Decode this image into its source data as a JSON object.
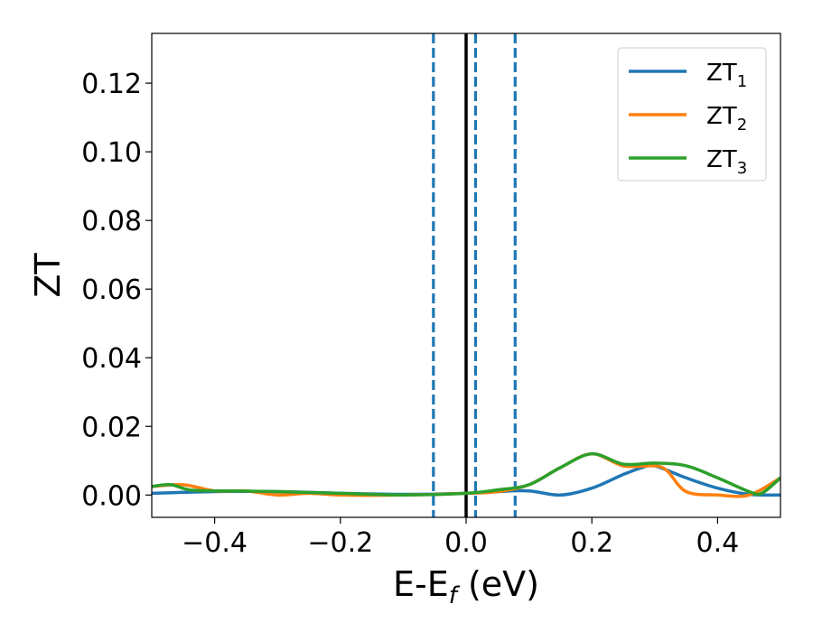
{
  "chart_data": {
    "type": "line",
    "title": "",
    "xlabel": "E-E",
    "xlabel_sub": "f",
    "xlabel_unit": " (eV)",
    "ylabel": "ZT",
    "xlim": [
      -0.5,
      0.5
    ],
    "ylim": [
      -0.0065,
      0.1345
    ],
    "xticks": [
      -0.4,
      -0.2,
      0.0,
      0.2,
      0.4
    ],
    "xtick_labels": [
      "−0.4",
      "−0.2",
      "0.0",
      "0.2",
      "0.4"
    ],
    "yticks": [
      0.0,
      0.02,
      0.04,
      0.06,
      0.08,
      0.1,
      0.12
    ],
    "ytick_labels": [
      "0.00",
      "0.02",
      "0.04",
      "0.06",
      "0.08",
      "0.10",
      "0.12"
    ],
    "grid": false,
    "legend_position": "top-right",
    "vlines": [
      {
        "x": 0.0,
        "style": "solid",
        "color": "#000000"
      },
      {
        "x": -0.052,
        "style": "dashed",
        "color": "#1f77b4"
      },
      {
        "x": 0.015,
        "style": "dashed",
        "color": "#1f77b4"
      },
      {
        "x": 0.078,
        "style": "dashed",
        "color": "#1f77b4"
      }
    ],
    "series": [
      {
        "name": "ZT",
        "sub": "1",
        "color": "#1f77b4",
        "x": [
          -0.5,
          -0.4,
          -0.3,
          -0.2,
          -0.1,
          0.0,
          0.05,
          0.1,
          0.15,
          0.2,
          0.25,
          0.28,
          0.3,
          0.35,
          0.4,
          0.45,
          0.5
        ],
        "y": [
          0.0005,
          0.001,
          0.001,
          0.0005,
          0.0002,
          0.0005,
          0.001,
          0.0012,
          0.0,
          0.002,
          0.006,
          0.008,
          0.0085,
          0.005,
          0.002,
          0.0002,
          0.0
        ]
      },
      {
        "name": "ZT",
        "sub": "2",
        "color": "#ff7f0e",
        "x": [
          -0.5,
          -0.45,
          -0.4,
          -0.35,
          -0.3,
          -0.25,
          -0.2,
          -0.1,
          0.0,
          0.05,
          0.1,
          0.15,
          0.2,
          0.25,
          0.3,
          0.32,
          0.35,
          0.4,
          0.45,
          0.5
        ],
        "y": [
          0.0025,
          0.003,
          0.0012,
          0.0012,
          0.0,
          0.0005,
          0.0,
          0.0,
          0.0005,
          0.001,
          0.003,
          0.008,
          0.012,
          0.0085,
          0.0085,
          0.007,
          0.001,
          0.0,
          0.0,
          0.005
        ]
      },
      {
        "name": "ZT",
        "sub": "3",
        "color": "#2ca02c",
        "x": [
          -0.5,
          -0.47,
          -0.44,
          -0.4,
          -0.37,
          -0.3,
          -0.2,
          -0.1,
          0.0,
          0.05,
          0.1,
          0.15,
          0.2,
          0.25,
          0.3,
          0.35,
          0.4,
          0.45,
          0.47,
          0.5
        ],
        "y": [
          0.0025,
          0.003,
          0.0015,
          0.0012,
          0.0012,
          0.001,
          0.0005,
          0.0,
          0.0005,
          0.0015,
          0.003,
          0.008,
          0.012,
          0.009,
          0.0093,
          0.0085,
          0.005,
          0.001,
          0.0005,
          0.005
        ]
      }
    ]
  }
}
